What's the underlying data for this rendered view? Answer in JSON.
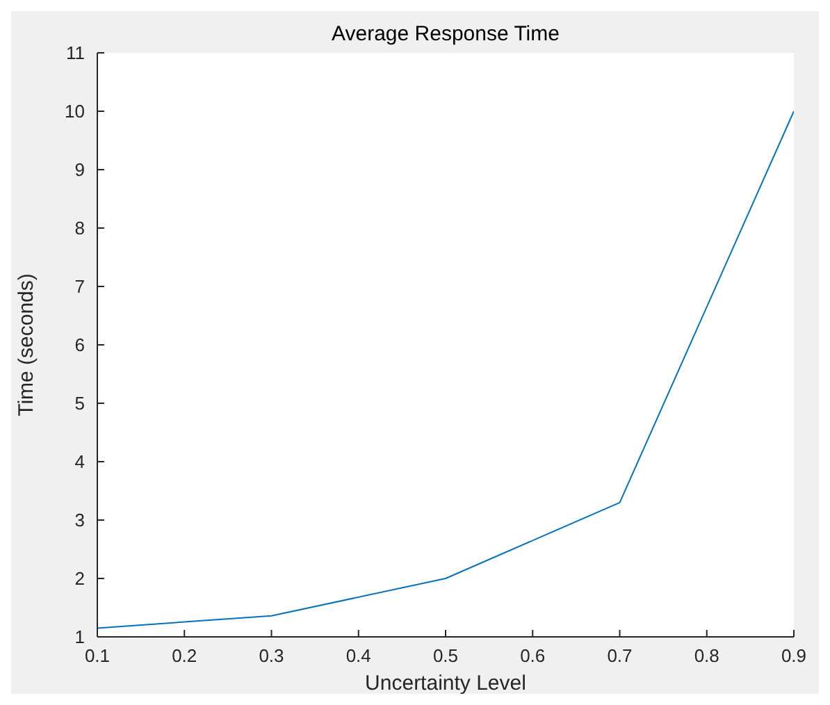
{
  "chart_data": {
    "type": "line",
    "title": "Average Response Time",
    "xlabel": "Uncertainty Level",
    "ylabel": "Time (seconds)",
    "x": [
      0.1,
      0.3,
      0.5,
      0.7,
      0.9
    ],
    "series": [
      {
        "color": "#0072bd",
        "values": [
          1.15,
          1.36,
          2.0,
          3.3,
          10.0
        ]
      }
    ],
    "xlim": [
      0.1,
      0.9
    ],
    "xticks": [
      0.1,
      0.2,
      0.3,
      0.4,
      0.5,
      0.6,
      0.7,
      0.8,
      0.9
    ],
    "ylim": [
      1,
      11
    ],
    "yticks": [
      1,
      2,
      3,
      4,
      5,
      6,
      7,
      8,
      9,
      10,
      11
    ],
    "grid": false,
    "legend": false,
    "marker": "none",
    "line_style": "solid"
  }
}
